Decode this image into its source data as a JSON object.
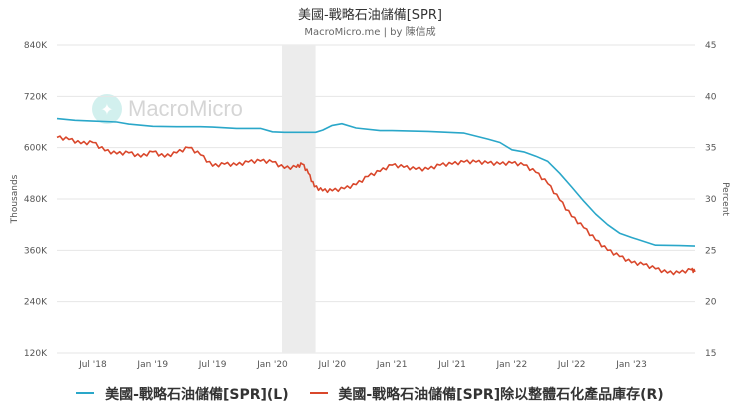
{
  "chart_data": {
    "type": "line",
    "title": "美國-戰略石油儲備[SPR]",
    "subtitle": "MacroMicro.me | by 陳信成",
    "watermark": "MacroMicro",
    "left_axis": {
      "label": "Thousands",
      "ylim": [
        120,
        840
      ],
      "ticks": [
        120,
        240,
        360,
        480,
        600,
        720,
        840
      ],
      "tick_labels": [
        "120K",
        "240K",
        "360K",
        "480K",
        "600K",
        "720K",
        "840K"
      ]
    },
    "right_axis": {
      "label": "Percent",
      "ylim": [
        15,
        45
      ],
      "ticks": [
        15,
        20,
        25,
        30,
        35,
        40,
        45
      ],
      "tick_labels": [
        "15",
        "20",
        "25",
        "30",
        "35",
        "40",
        "45"
      ]
    },
    "x_range": [
      2018.2,
      2023.53
    ],
    "x_ticks": [
      2018.5,
      2019.0,
      2019.5,
      2020.0,
      2020.5,
      2021.0,
      2021.5,
      2022.0,
      2022.5,
      2023.0
    ],
    "x_tick_labels": [
      "Jul '18",
      "Jan '19",
      "Jul '19",
      "Jan '20",
      "Jul '20",
      "Jan '21",
      "Jul '21",
      "Jan '22",
      "Jul '22",
      "Jan '23"
    ],
    "shaded_region": [
      2020.08,
      2020.36
    ],
    "series": [
      {
        "name": "美國-戰略石油儲備[SPR](L)",
        "axis": "left",
        "color": "#2aa7c9",
        "x": [
          2018.2,
          2018.35,
          2018.5,
          2018.7,
          2018.8,
          2019.0,
          2019.2,
          2019.4,
          2019.5,
          2019.7,
          2019.9,
          2020.0,
          2020.1,
          2020.3,
          2020.36,
          2020.42,
          2020.5,
          2020.58,
          2020.7,
          2020.9,
          2021.0,
          2021.3,
          2021.6,
          2021.8,
          2021.9,
          2022.0,
          2022.1,
          2022.2,
          2022.3,
          2022.4,
          2022.5,
          2022.6,
          2022.7,
          2022.8,
          2022.9,
          2023.0,
          2023.2,
          2023.4,
          2023.53
        ],
        "values": [
          668,
          664,
          662,
          660,
          655,
          650,
          649,
          649,
          648,
          645,
          645,
          637,
          636,
          636,
          636,
          641,
          652,
          656,
          646,
          640,
          640,
          638,
          634,
          620,
          612,
          595,
          590,
          580,
          568,
          540,
          508,
          475,
          445,
          420,
          400,
          390,
          372,
          371,
          370
        ]
      },
      {
        "name": "美國-戰略石油儲備[SPR]除以整體石化產品庫存(R)",
        "axis": "right",
        "color": "#d9472b",
        "x": [
          2018.2,
          2018.3,
          2018.4,
          2018.5,
          2018.6,
          2018.7,
          2018.8,
          2018.9,
          2019.0,
          2019.1,
          2019.2,
          2019.3,
          2019.4,
          2019.5,
          2019.6,
          2019.7,
          2019.8,
          2019.9,
          2020.0,
          2020.1,
          2020.2,
          2020.25,
          2020.3,
          2020.35,
          2020.42,
          2020.5,
          2020.6,
          2020.7,
          2020.8,
          2020.9,
          2021.0,
          2021.1,
          2021.2,
          2021.3,
          2021.4,
          2021.5,
          2021.6,
          2021.7,
          2021.8,
          2021.9,
          2022.0,
          2022.1,
          2022.2,
          2022.3,
          2022.4,
          2022.5,
          2022.6,
          2022.7,
          2022.8,
          2022.9,
          2023.0,
          2023.1,
          2023.2,
          2023.3,
          2023.4,
          2023.5,
          2023.53
        ],
        "values": [
          36.0,
          35.8,
          35.4,
          35.5,
          34.7,
          34.4,
          34.5,
          34.1,
          34.6,
          34.1,
          34.5,
          35.0,
          34.3,
          33.2,
          33.4,
          33.3,
          33.6,
          33.7,
          33.6,
          33.0,
          33.1,
          33.4,
          32.5,
          31.2,
          30.8,
          30.8,
          31.0,
          31.4,
          32.2,
          32.7,
          33.3,
          33.1,
          32.9,
          32.9,
          33.3,
          33.4,
          33.6,
          33.6,
          33.5,
          33.4,
          33.5,
          33.3,
          32.6,
          31.5,
          29.9,
          28.3,
          27.2,
          26.0,
          25.0,
          24.4,
          23.8,
          23.6,
          23.2,
          22.8,
          22.8,
          23.1,
          22.9
        ]
      }
    ]
  }
}
